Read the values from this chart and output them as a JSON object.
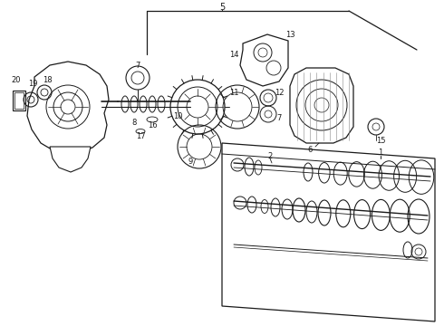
{
  "background_color": "#ffffff",
  "line_color": "#1a1a1a",
  "fig_width": 4.9,
  "fig_height": 3.6,
  "dpi": 100,
  "label_fontsize": 6.0
}
